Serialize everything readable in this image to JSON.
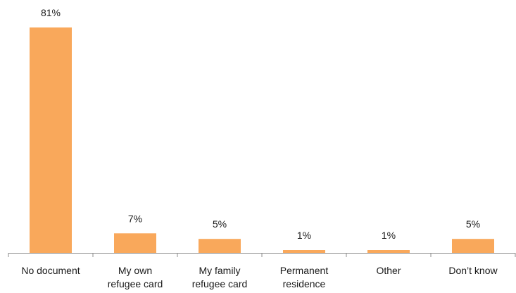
{
  "chart_data": {
    "type": "bar",
    "categories": [
      "No document",
      "My own refugee card",
      "My family refugee card",
      "Permanent residence",
      "Other",
      "Don’t know"
    ],
    "category_lines": [
      [
        "No document"
      ],
      [
        "My own",
        "refugee card"
      ],
      [
        "My family",
        "refugee card"
      ],
      [
        "Permanent",
        "residence"
      ],
      [
        "Other"
      ],
      [
        "Don’t know"
      ]
    ],
    "values": [
      81,
      7,
      5,
      1,
      1,
      5
    ],
    "data_labels": [
      "81%",
      "7%",
      "5%",
      "1%",
      "1%",
      "5%"
    ],
    "title": "",
    "xlabel": "",
    "ylabel": "",
    "ylim": [
      0,
      81
    ],
    "grid": false,
    "legend": "none",
    "bar_color": "#F9A85B",
    "axis_color": "#8c8c8c"
  }
}
